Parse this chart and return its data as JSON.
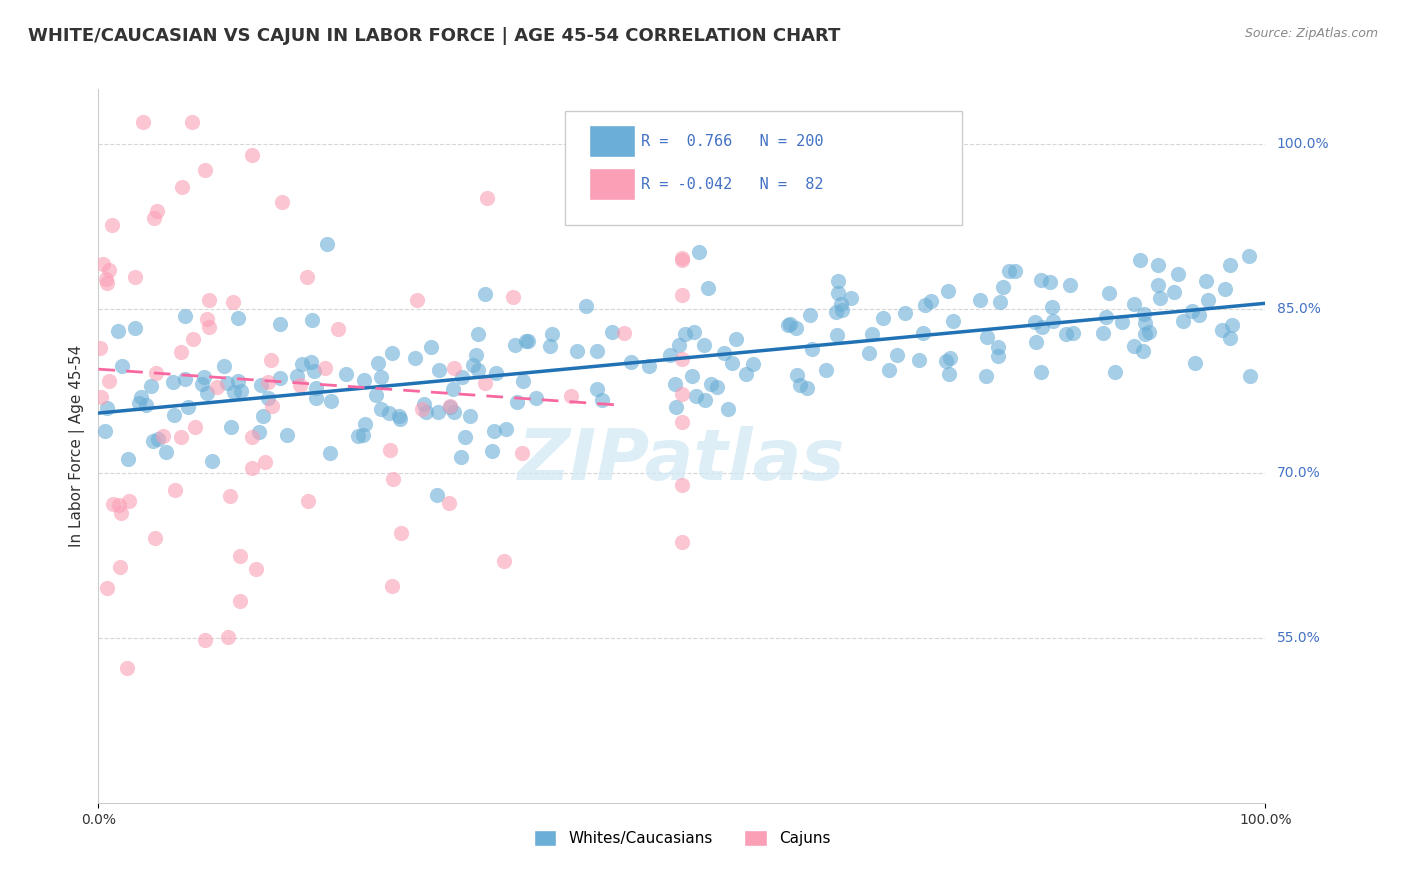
{
  "title": "WHITE/CAUCASIAN VS CAJUN IN LABOR FORCE | AGE 45-54 CORRELATION CHART",
  "source": "Source: ZipAtlas.com",
  "xlabel": "",
  "ylabel": "In Labor Force | Age 45-54",
  "blue_R": 0.766,
  "blue_N": 200,
  "pink_R": -0.042,
  "pink_N": 82,
  "blue_color": "#6baed6",
  "pink_color": "#fa9fb5",
  "blue_scatter_color": "#6baed6",
  "pink_scatter_color": "#fa9fb5",
  "blue_line_color": "#2171b5",
  "pink_line_color": "#f768a1",
  "xmin": 0.0,
  "xmax": 1.0,
  "ymin": 0.4,
  "ymax": 1.05,
  "right_ytick_labels": [
    "55.0%",
    "70.0%",
    "85.0%",
    "100.0%"
  ],
  "right_ytick_vals": [
    0.55,
    0.7,
    0.85,
    1.0
  ],
  "xtick_labels": [
    "0.0%",
    "100.0%"
  ],
  "xtick_vals": [
    0.0,
    1.0
  ],
  "watermark": "ZIPatlas",
  "legend_label_blue": "Whites/Caucasians",
  "legend_label_pink": "Cajuns",
  "blue_trend_x": [
    0.0,
    1.0
  ],
  "blue_trend_y": [
    0.755,
    0.855
  ],
  "pink_trend_x": [
    0.0,
    0.45
  ],
  "pink_trend_y": [
    0.795,
    0.762
  ],
  "background_color": "#ffffff",
  "grid_color": "#cccccc",
  "title_fontsize": 13,
  "axis_label_fontsize": 11,
  "tick_fontsize": 10,
  "right_label_color": "#4472c4",
  "legend_R_color": "#4472c4"
}
